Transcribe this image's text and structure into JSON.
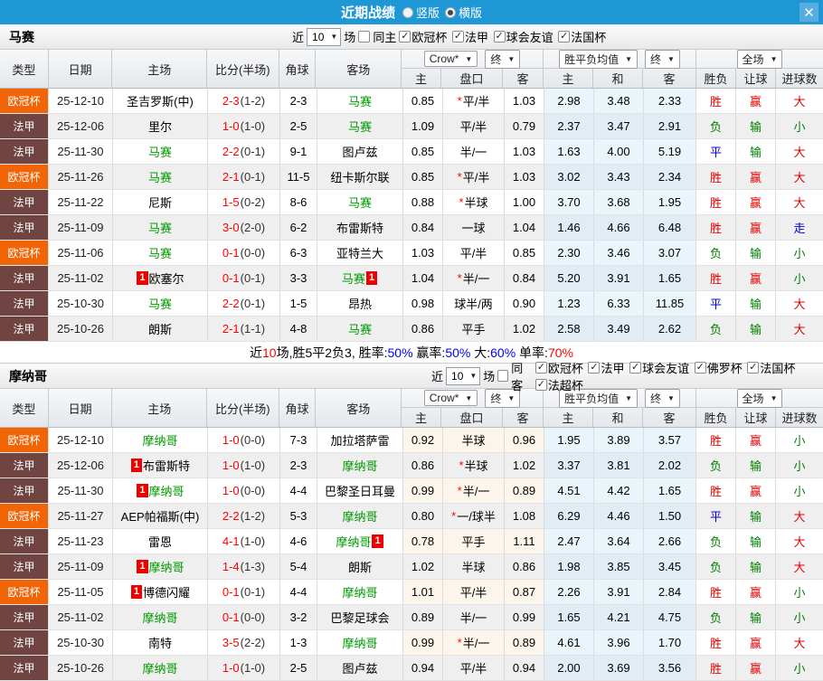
{
  "titlebar": {
    "title": "近期战绩",
    "radio_vertical": "竖版",
    "radio_horizontal": "横版",
    "vertical_selected": false,
    "horizontal_selected": true,
    "close": "✕"
  },
  "colors": {
    "titlebar_blue": "#1f97d5",
    "champions_league_orange": "#f26507",
    "ligue1_maroon": "#6f4441",
    "focus_team_green": "#009900",
    "score_red": "#ff0000",
    "win_red": "#e60000",
    "lose_green": "#008000",
    "draw_blue": "#0000cc",
    "mean_col_bg": "#e9f4fb"
  },
  "table_header": {
    "left_cols": [
      "类型",
      "日期",
      "主场",
      "比分(半场)",
      "角球",
      "客场"
    ],
    "groups": [
      {
        "dropdowns": [
          "Crow*",
          "终"
        ],
        "cols": [
          "主",
          "盘口",
          "客"
        ]
      },
      {
        "dropdowns": [
          "胜平负均值",
          "终"
        ],
        "cols": [
          "主",
          "和",
          "客"
        ]
      },
      {
        "dropdowns": [
          "全场"
        ],
        "cols": [
          "胜负",
          "让球",
          "进球数"
        ]
      }
    ]
  },
  "sections": [
    {
      "team": "马赛",
      "near_label": "近",
      "count": "10",
      "unit_label": "场",
      "same_label": "同主",
      "same_checked": false,
      "leagues": [
        "欧冠杯",
        "法甲",
        "球会友谊",
        "法国杯"
      ],
      "matches": [
        {
          "league": "欧冠杯",
          "date": "25-12-10",
          "home": "圣吉罗斯(中)",
          "home_green": false,
          "home_card": false,
          "score": "2-3",
          "half": "(1-2)",
          "corner": "2-3",
          "away": "马赛",
          "away_green": true,
          "away_card": false,
          "w1": "0.85",
          "star": true,
          "handicap": "平/半",
          "w2": "1.03",
          "avg1": "2.98",
          "avgX": "3.48",
          "avg2": "2.33",
          "r1": "胜",
          "r2": "赢",
          "r3": "大"
        },
        {
          "league": "法甲",
          "date": "25-12-06",
          "home": "里尔",
          "home_green": false,
          "home_card": false,
          "score": "1-0",
          "half": "(1-0)",
          "corner": "2-5",
          "away": "马赛",
          "away_green": true,
          "away_card": false,
          "w1": "1.09",
          "star": false,
          "handicap": "平/半",
          "w2": "0.79",
          "avg1": "2.37",
          "avgX": "3.47",
          "avg2": "2.91",
          "r1": "负",
          "r2": "输",
          "r3": "小"
        },
        {
          "league": "法甲",
          "date": "25-11-30",
          "home": "马赛",
          "home_green": true,
          "home_card": false,
          "score": "2-2",
          "half": "(0-1)",
          "corner": "9-1",
          "away": "图卢兹",
          "away_green": false,
          "away_card": false,
          "w1": "0.85",
          "star": false,
          "handicap": "半/一",
          "w2": "1.03",
          "avg1": "1.63",
          "avgX": "4.00",
          "avg2": "5.19",
          "r1": "平",
          "r2": "输",
          "r3": "大"
        },
        {
          "league": "欧冠杯",
          "date": "25-11-26",
          "home": "马赛",
          "home_green": true,
          "home_card": false,
          "score": "2-1",
          "half": "(0-1)",
          "corner": "11-5",
          "away": "纽卡斯尔联",
          "away_green": false,
          "away_card": false,
          "w1": "0.85",
          "star": true,
          "handicap": "平/半",
          "w2": "1.03",
          "avg1": "3.02",
          "avgX": "3.43",
          "avg2": "2.34",
          "r1": "胜",
          "r2": "赢",
          "r3": "大"
        },
        {
          "league": "法甲",
          "date": "25-11-22",
          "home": "尼斯",
          "home_green": false,
          "home_card": false,
          "score": "1-5",
          "half": "(0-2)",
          "corner": "8-6",
          "away": "马赛",
          "away_green": true,
          "away_card": false,
          "w1": "0.88",
          "star": true,
          "handicap": "半球",
          "w2": "1.00",
          "avg1": "3.70",
          "avgX": "3.68",
          "avg2": "1.95",
          "r1": "胜",
          "r2": "赢",
          "r3": "大"
        },
        {
          "league": "法甲",
          "date": "25-11-09",
          "home": "马赛",
          "home_green": true,
          "home_card": false,
          "score": "3-0",
          "half": "(2-0)",
          "corner": "6-2",
          "away": "布雷斯特",
          "away_green": false,
          "away_card": false,
          "w1": "0.84",
          "star": false,
          "handicap": "一球",
          "w2": "1.04",
          "avg1": "1.46",
          "avgX": "4.66",
          "avg2": "6.48",
          "r1": "胜",
          "r2": "赢",
          "r3": "走"
        },
        {
          "league": "欧冠杯",
          "date": "25-11-06",
          "home": "马赛",
          "home_green": true,
          "home_card": false,
          "score": "0-1",
          "half": "(0-0)",
          "corner": "6-3",
          "away": "亚特兰大",
          "away_green": false,
          "away_card": false,
          "w1": "1.03",
          "star": false,
          "handicap": "平/半",
          "w2": "0.85",
          "avg1": "2.30",
          "avgX": "3.46",
          "avg2": "3.07",
          "r1": "负",
          "r2": "输",
          "r3": "小"
        },
        {
          "league": "法甲",
          "date": "25-11-02",
          "home": "欧塞尔",
          "home_green": false,
          "home_card": true,
          "score": "0-1",
          "half": "(0-1)",
          "corner": "3-3",
          "away": "马赛",
          "away_green": true,
          "away_card": true,
          "w1": "1.04",
          "star": true,
          "handicap": "半/一",
          "w2": "0.84",
          "avg1": "5.20",
          "avgX": "3.91",
          "avg2": "1.65",
          "r1": "胜",
          "r2": "赢",
          "r3": "小"
        },
        {
          "league": "法甲",
          "date": "25-10-30",
          "home": "马赛",
          "home_green": true,
          "home_card": false,
          "score": "2-2",
          "half": "(0-1)",
          "corner": "1-5",
          "away": "昂热",
          "away_green": false,
          "away_card": false,
          "w1": "0.98",
          "star": false,
          "handicap": "球半/两",
          "w2": "0.90",
          "avg1": "1.23",
          "avgX": "6.33",
          "avg2": "11.85",
          "r1": "平",
          "r2": "输",
          "r3": "大"
        },
        {
          "league": "法甲",
          "date": "25-10-26",
          "home": "朗斯",
          "home_green": false,
          "home_card": false,
          "score": "2-1",
          "half": "(1-1)",
          "corner": "4-8",
          "away": "马赛",
          "away_green": true,
          "away_card": false,
          "w1": "0.86",
          "star": false,
          "handicap": "平手",
          "w2": "1.02",
          "avg1": "2.58",
          "avgX": "3.49",
          "avg2": "2.62",
          "r1": "负",
          "r2": "输",
          "r3": "大"
        }
      ],
      "summary": [
        {
          "text": "近",
          "color": "#000000"
        },
        {
          "text": "10",
          "color": "#ff0000"
        },
        {
          "text": "场,胜5平2负3, 胜率:",
          "color": "#000000"
        },
        {
          "text": "50%",
          "color": "#0000ff"
        },
        {
          "text": " 赢率:",
          "color": "#000000"
        },
        {
          "text": "50%",
          "color": "#0000ff"
        },
        {
          "text": " 大:",
          "color": "#000000"
        },
        {
          "text": "60%",
          "color": "#0000ff"
        },
        {
          "text": " 单率:",
          "color": "#000000"
        },
        {
          "text": "70%",
          "color": "#ff0000"
        }
      ]
    },
    {
      "team": "摩纳哥",
      "near_label": "近",
      "count": "10",
      "unit_label": "场",
      "same_label": "同客",
      "same_checked": false,
      "leagues": [
        "欧冠杯",
        "法甲",
        "球会友谊",
        "佛罗杯",
        "法国杯",
        "法超杯"
      ],
      "matches": [
        {
          "league": "欧冠杯",
          "date": "25-12-10",
          "home": "摩纳哥",
          "home_green": true,
          "home_card": false,
          "score": "1-0",
          "half": "(0-0)",
          "corner": "7-3",
          "away": "加拉塔萨雷",
          "away_green": false,
          "away_card": false,
          "w1": "0.92",
          "star": false,
          "handicap": "半球",
          "w2": "0.96",
          "avg1": "1.95",
          "avgX": "3.89",
          "avg2": "3.57",
          "r1": "胜",
          "r2": "赢",
          "r3": "小"
        },
        {
          "league": "法甲",
          "date": "25-12-06",
          "home": "布雷斯特",
          "home_green": false,
          "home_card": true,
          "score": "1-0",
          "half": "(1-0)",
          "corner": "2-3",
          "away": "摩纳哥",
          "away_green": true,
          "away_card": false,
          "w1": "0.86",
          "star": true,
          "handicap": "半球",
          "w2": "1.02",
          "avg1": "3.37",
          "avgX": "3.81",
          "avg2": "2.02",
          "r1": "负",
          "r2": "输",
          "r3": "小"
        },
        {
          "league": "法甲",
          "date": "25-11-30",
          "home": "摩纳哥",
          "home_green": true,
          "home_card": true,
          "score": "1-0",
          "half": "(0-0)",
          "corner": "4-4",
          "away": "巴黎圣日耳曼",
          "away_green": false,
          "away_card": false,
          "w1": "0.99",
          "star": true,
          "handicap": "半/一",
          "w2": "0.89",
          "avg1": "4.51",
          "avgX": "4.42",
          "avg2": "1.65",
          "r1": "胜",
          "r2": "赢",
          "r3": "小"
        },
        {
          "league": "欧冠杯",
          "date": "25-11-27",
          "home": "AEP帕福斯(中)",
          "home_green": false,
          "home_card": false,
          "score": "2-2",
          "half": "(1-2)",
          "corner": "5-3",
          "away": "摩纳哥",
          "away_green": true,
          "away_card": false,
          "w1": "0.80",
          "star": true,
          "handicap": "一/球半",
          "w2": "1.08",
          "avg1": "6.29",
          "avgX": "4.46",
          "avg2": "1.50",
          "r1": "平",
          "r2": "输",
          "r3": "大"
        },
        {
          "league": "法甲",
          "date": "25-11-23",
          "home": "雷恩",
          "home_green": false,
          "home_card": false,
          "score": "4-1",
          "half": "(1-0)",
          "corner": "4-6",
          "away": "摩纳哥",
          "away_green": true,
          "away_card": true,
          "w1": "0.78",
          "star": false,
          "handicap": "平手",
          "w2": "1.11",
          "avg1": "2.47",
          "avgX": "3.64",
          "avg2": "2.66",
          "r1": "负",
          "r2": "输",
          "r3": "大"
        },
        {
          "league": "法甲",
          "date": "25-11-09",
          "home": "摩纳哥",
          "home_green": true,
          "home_card": true,
          "score": "1-4",
          "half": "(1-3)",
          "corner": "5-4",
          "away": "朗斯",
          "away_green": false,
          "away_card": false,
          "w1": "1.02",
          "star": false,
          "handicap": "半球",
          "w2": "0.86",
          "avg1": "1.98",
          "avgX": "3.85",
          "avg2": "3.45",
          "r1": "负",
          "r2": "输",
          "r3": "大"
        },
        {
          "league": "欧冠杯",
          "date": "25-11-05",
          "home": "博德闪耀",
          "home_green": false,
          "home_card": true,
          "score": "0-1",
          "half": "(0-1)",
          "corner": "4-4",
          "away": "摩纳哥",
          "away_green": true,
          "away_card": false,
          "w1": "1.01",
          "star": false,
          "handicap": "平/半",
          "w2": "0.87",
          "avg1": "2.26",
          "avgX": "3.91",
          "avg2": "2.84",
          "r1": "胜",
          "r2": "赢",
          "r3": "小"
        },
        {
          "league": "法甲",
          "date": "25-11-02",
          "home": "摩纳哥",
          "home_green": true,
          "home_card": false,
          "score": "0-1",
          "half": "(0-0)",
          "corner": "3-2",
          "away": "巴黎足球会",
          "away_green": false,
          "away_card": false,
          "w1": "0.89",
          "star": false,
          "handicap": "半/一",
          "w2": "0.99",
          "avg1": "1.65",
          "avgX": "4.21",
          "avg2": "4.75",
          "r1": "负",
          "r2": "输",
          "r3": "小"
        },
        {
          "league": "法甲",
          "date": "25-10-30",
          "home": "南特",
          "home_green": false,
          "home_card": false,
          "score": "3-5",
          "half": "(2-2)",
          "corner": "1-3",
          "away": "摩纳哥",
          "away_green": true,
          "away_card": false,
          "w1": "0.99",
          "star": true,
          "handicap": "半/一",
          "w2": "0.89",
          "avg1": "4.61",
          "avgX": "3.96",
          "avg2": "1.70",
          "r1": "胜",
          "r2": "赢",
          "r3": "大"
        },
        {
          "league": "法甲",
          "date": "25-10-26",
          "home": "摩纳哥",
          "home_green": true,
          "home_card": false,
          "score": "1-0",
          "half": "(1-0)",
          "corner": "2-5",
          "away": "图卢兹",
          "away_green": false,
          "away_card": false,
          "w1": "0.94",
          "star": false,
          "handicap": "平/半",
          "w2": "0.94",
          "avg1": "2.00",
          "avgX": "3.69",
          "avg2": "3.56",
          "r1": "胜",
          "r2": "赢",
          "r3": "小"
        }
      ],
      "summary": null
    }
  ]
}
